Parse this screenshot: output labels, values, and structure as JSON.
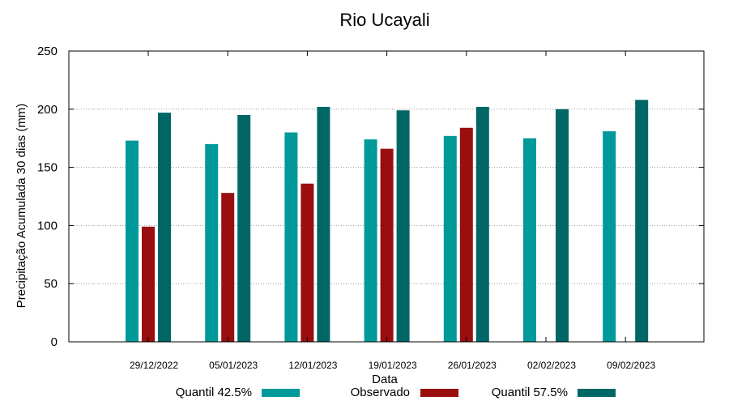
{
  "chart_data": {
    "type": "bar",
    "title": "Rio Ucayali",
    "xlabel": "Data",
    "ylabel": "Precipitação Acumulada 30 dias (mm)",
    "ylim": [
      0,
      250
    ],
    "yticks": [
      0,
      50,
      100,
      150,
      200,
      250
    ],
    "grid": "horizontal dotted",
    "legend_position": "bottom",
    "categories": [
      "29/12/2022",
      "05/01/2023",
      "12/01/2023",
      "19/01/2023",
      "26/01/2023",
      "02/02/2023",
      "09/02/2023"
    ],
    "series": [
      {
        "name": "Quantil 42.5%",
        "color": "#009999",
        "values": [
          173,
          170,
          180,
          174,
          177,
          175,
          181
        ]
      },
      {
        "name": "Observado",
        "color": "#990f0f",
        "values": [
          99,
          128,
          136,
          166,
          184,
          null,
          null
        ]
      },
      {
        "name": "Quantil 57.5%",
        "color": "#006666",
        "values": [
          197,
          195,
          202,
          199,
          202,
          200,
          208
        ]
      }
    ]
  }
}
